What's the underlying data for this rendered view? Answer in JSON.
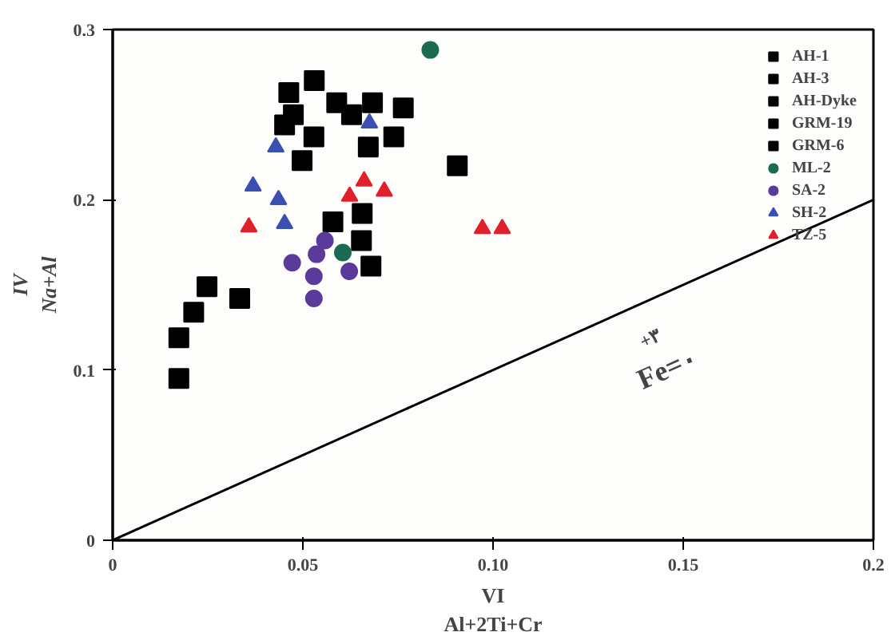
{
  "chart_data": {
    "type": "scatter",
    "xlabel": "VI\nAl+2Ti+Cr",
    "ylabel": "IV\nNa+Al",
    "xlim": [
      0,
      0.2
    ],
    "ylim": [
      0,
      0.3
    ],
    "xticks": [
      0,
      0.05,
      {
        "value": 0.1,
        "label": "0.10"
      },
      {
        "value": 0.15,
        "label": "0.15"
      },
      0.2
    ],
    "yticks": [
      0,
      0.1,
      0.2,
      0.3
    ],
    "grid": false,
    "legend": "top right",
    "annotations": [
      "+۳",
      "Fe=۰"
    ],
    "series": [
      {
        "name": "AH-1",
        "color": "#000000",
        "marker": "square",
        "x": [
          0.0248,
          0.0213,
          0.0174,
          0.0174,
          0.0334
        ],
        "values": [
          0.149,
          0.134,
          0.119,
          0.095,
          0.142
        ]
      },
      {
        "name": "AH-3",
        "color": "#000000",
        "marker": "square",
        "x": [
          0.053,
          0.0463,
          0.0475,
          0.0452,
          0.0529,
          0.0498,
          0.0589
        ],
        "values": [
          0.27,
          0.263,
          0.25,
          0.244,
          0.237,
          0.223,
          0.257
        ]
      },
      {
        "name": "AH-Dyke",
        "color": "#000000",
        "marker": "square",
        "x": [
          0.0764,
          0.0672
        ],
        "values": [
          0.254,
          0.231
        ]
      },
      {
        "name": "GRM-19",
        "color": "#000000",
        "marker": "square",
        "x": [
          0.0683,
          0.0628,
          0.0739,
          0.0906
        ],
        "values": [
          0.257,
          0.25,
          0.237,
          0.22
        ]
      },
      {
        "name": "GRM-6",
        "color": "#000000",
        "marker": "square",
        "x": [
          0.0579,
          0.0656,
          0.0654,
          0.0679
        ],
        "values": [
          0.187,
          0.192,
          0.176,
          0.161
        ]
      },
      {
        "name": "ML-2",
        "color": "#1b6b52",
        "marker": "circle",
        "x": [
          0.0835,
          0.0605
        ],
        "values": [
          0.288,
          0.169
        ]
      },
      {
        "name": "SA-2",
        "color": "#5a3a9a",
        "marker": "circle",
        "x": [
          0.0558,
          0.0536,
          0.0472,
          0.0529,
          0.0622,
          0.0529
        ],
        "values": [
          0.176,
          0.168,
          0.163,
          0.155,
          0.158,
          0.142
        ]
      },
      {
        "name": "SH-2",
        "color": "#3a50b0",
        "marker": "triangle",
        "x": [
          0.0429,
          0.0675,
          0.0369,
          0.0436,
          0.0452
        ],
        "values": [
          0.231,
          0.245,
          0.208,
          0.2,
          0.186
        ]
      },
      {
        "name": "TZ-5",
        "color": "#e0202a",
        "marker": "triangle",
        "x": [
          0.0358,
          0.0623,
          0.0661,
          0.0714,
          0.0972,
          0.1024
        ],
        "values": [
          0.184,
          0.202,
          0.211,
          0.205,
          0.183,
          0.183
        ]
      },
      {
        "type": "line",
        "color": "#000000",
        "x": [
          0,
          0.2
        ],
        "values": [
          0,
          0.2
        ]
      }
    ]
  }
}
